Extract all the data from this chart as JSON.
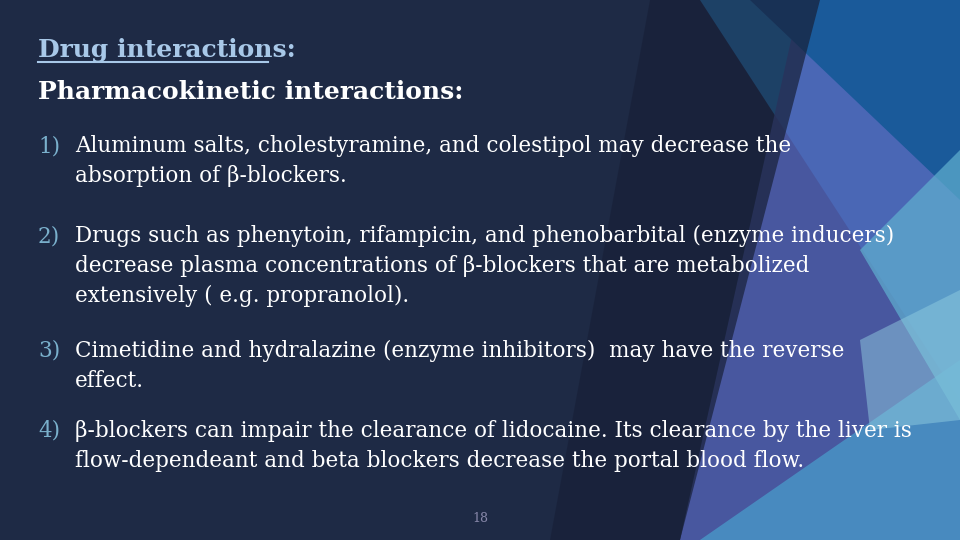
{
  "title": "Drug interactions:",
  "subtitle": "Pharmacokinetic interactions:",
  "items": [
    {
      "number": "1)",
      "text": "Aluminum salts, cholestyramine, and colestipol may decrease the\nabsorption of β-blockers."
    },
    {
      "number": "2)",
      "text": "Drugs such as phenytoin, rifampicin, and phenobarbital (enzyme inducers)\ndecrease plasma concentrations of β-blockers that are metabolized\nextensively ( e.g. propranolol)."
    },
    {
      "number": "3)",
      "text": "Cimetidine and hydralazine (enzyme inhibitors)  may have the reverse\neffect."
    },
    {
      "number": "4)",
      "text": "β-blockers can impair the clearance of lidocaine. Its clearance by the liver is\nflow-dependeant and beta blockers decrease the portal blood flow."
    }
  ],
  "page_number": "18",
  "bg_color": "#1e2a45",
  "text_color": "#ffffff",
  "title_color": "#a8c8e8",
  "subtitle_color": "#ffffff",
  "number_color": "#7ab0cc",
  "tri_colors": [
    "#1e6ab0",
    "#2a8fd4",
    "#4ab0dc",
    "#6ec8e8",
    "#3a7fc8",
    "#5090c0",
    "#7ab8d8"
  ],
  "font_family": "DejaVu Serif"
}
